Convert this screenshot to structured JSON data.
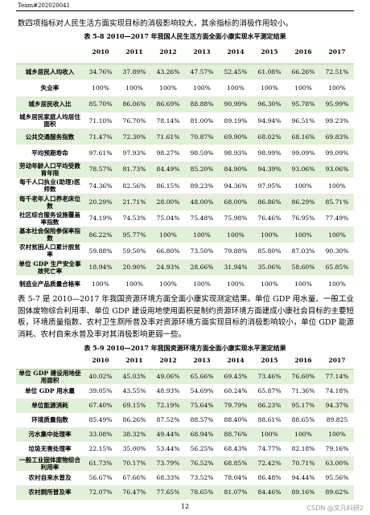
{
  "header": {
    "team": "Team#202020041"
  },
  "intro": "数四项指标对人民生活方面实现目标的消极影响较大，其余指标的消极作用较小。",
  "table1": {
    "caption": "表 5-8 2010—2017 年我国人民生活方面全面小康实现水平测定结果",
    "columns": [
      "2010",
      "2011",
      "2012",
      "2013",
      "2014",
      "2015",
      "2016",
      "2017"
    ],
    "rows": [
      {
        "label": "城乡居民人均收入",
        "cells": [
          "34.76%",
          "37.89%",
          "43.26%",
          "47.57%",
          "52.45%",
          "61.08%",
          "66.26%",
          "72.51%"
        ]
      },
      {
        "label": "失业率",
        "cells": [
          "100%",
          "100%",
          "100%",
          "100%",
          "100%",
          "100%",
          "100%",
          "100%"
        ]
      },
      {
        "label": "城乡居民收入比",
        "cells": [
          "85.70%",
          "86.06%",
          "86.69%",
          "88.88%",
          "90.99%",
          "96.30%",
          "95.78%",
          "95.99%"
        ]
      },
      {
        "label": "城乡居民家庭人均居住面积",
        "cells": [
          "71.10%",
          "76.70%",
          "78.14%",
          "81.00%",
          "89.19%",
          "94.94%",
          "96.51%",
          "99.23%"
        ]
      },
      {
        "label": "公共交通服务指数",
        "cells": [
          "71.47%",
          "72.30%",
          "71.61%",
          "70.87%",
          "69.90%",
          "68.02%",
          "68.16%",
          "69.83%"
        ]
      },
      {
        "label": "平均预期寿命",
        "cells": [
          "97.61%",
          "97.93%",
          "98.27%",
          "98.59%",
          "98.93%",
          "98.99%",
          "99.09%",
          "99.09%"
        ]
      },
      {
        "label": "劳动年龄人口平均受教育年限",
        "cells": [
          "78.57%",
          "81.73%",
          "84.49%",
          "85.20%",
          "84.90%",
          "94.39%",
          "93.06%",
          "93.06%"
        ]
      },
      {
        "label": "每千人口执业(助理)医师数",
        "cells": [
          "74.36%",
          "82.56%",
          "86.15%",
          "89.23%",
          "94.36%",
          "97.95%",
          "100%",
          "100%"
        ]
      },
      {
        "label": "每千老年人口养老床位数",
        "cells": [
          "20.29%",
          "21.71%",
          "28.00%",
          "48.00%",
          "68.00%",
          "86.86%",
          "86.29%",
          "85.71%"
        ]
      },
      {
        "label": "社区综合服务设施覆盖率指数",
        "cells": [
          "74.19%",
          "74.53%",
          "75.04%",
          "75.48%",
          "75.98%",
          "76.46%",
          "76.95%",
          "77.49%"
        ]
      },
      {
        "label": "基本社会保险参保率指数",
        "cells": [
          "86.22%",
          "95.77%",
          "100%",
          "100%",
          "100%",
          "100%",
          "100%",
          "100%"
        ]
      },
      {
        "label": "农村贫困人口累计脱贫率",
        "cells": [
          "59.88%",
          "59.50%",
          "66.80%",
          "73.50%",
          "79.88%",
          "85.80%",
          "87.03%",
          "90.30%"
        ]
      },
      {
        "label": "单位 GDP 生产安全事故死亡率",
        "cells": [
          "18.94%",
          "20.90%",
          "24.93%",
          "28.66%",
          "31.94%",
          "35.06%",
          "58.60%",
          "65.85%"
        ]
      },
      {
        "label": "制造业产品质量合格率",
        "cells": [
          "100%",
          "100%",
          "100%",
          "100%",
          "100%",
          "100%",
          "100%",
          "100%"
        ]
      }
    ]
  },
  "paragraph": "表 5-7 是 2010—2017 年我国资源环境方面全面小康实现测定结果。单位 GDP 用水量、一般工业固体废物综合利用率、单位 GDP 建设用地使用面积是制约资源环境方面建成小康社会目标的主要短板，环境质量指数、农村卫生厕所普及率对资源环境方面实现目标的消极影响较小，单位 GDP 能源消耗、农村自来水普及率对其消极影响更弱一些。",
  "table2": {
    "caption": "表 5-9 2010—2017 年我国资源环境方面全面小康实现水平测定结果",
    "columns": [
      "2010",
      "2011",
      "2012",
      "2013",
      "2014",
      "2015",
      "2016",
      "2017"
    ],
    "rows": [
      {
        "label": "单位 GDP 建设用地使用面积",
        "cells": [
          "40.02%",
          "45.03%",
          "49.06%",
          "65.66%",
          "69.43%",
          "73.46%",
          "76.60%",
          "77.14%"
        ]
      },
      {
        "label": "单位 GDP 用水量",
        "cells": [
          "39.05%",
          "43.55%",
          "48.93%",
          "54.69%",
          "60.24%",
          "65.87%",
          "71.36%",
          "74.18%"
        ]
      },
      {
        "label": "单位能源消耗",
        "cells": [
          "67.40%",
          "69.15%",
          "72.19%",
          "75.64%",
          "79.79%",
          "86.23%",
          "95.17%",
          "94.37%"
        ]
      },
      {
        "label": "环境质量指数",
        "cells": [
          "85.49%",
          "86.26%",
          "87.52%",
          "88.57%",
          "88.40%",
          "88.61%",
          "88.65%",
          "89.825"
        ]
      },
      {
        "label": "污水集中处理率",
        "cells": [
          "33.08%",
          "38.32%",
          "49.44%",
          "68.94%",
          "88.76%",
          "100%",
          "100%",
          "100%"
        ]
      },
      {
        "label": "垃圾无害处理率",
        "cells": [
          "22.15%",
          "35.00%",
          "53.44%",
          "56.25%",
          "68.43%",
          "74.77%",
          "82.18%",
          "79.16%"
        ]
      },
      {
        "label": "一般工业固体废物综合利用率",
        "cells": [
          "61.73%",
          "70.17%",
          "73.79%",
          "76.52%",
          "68.85%",
          "72.42%",
          "70.71%",
          "63.00%"
        ]
      },
      {
        "label": "农村自来水普及",
        "cells": [
          "56.67%",
          "67.66%",
          "68.33%",
          "73.52%",
          "78.04%",
          "86.48%",
          "94.44%",
          "95.56%"
        ]
      },
      {
        "label": "农村厕所普及率",
        "cells": [
          "72.07%",
          "76.47%",
          "77.65%",
          "78.65%",
          "81.07%",
          "84.46%",
          "89.16%",
          "89.62%"
        ]
      }
    ]
  },
  "footer": {
    "page_number": "12",
    "watermark": "CSDN @文凡科研2"
  }
}
